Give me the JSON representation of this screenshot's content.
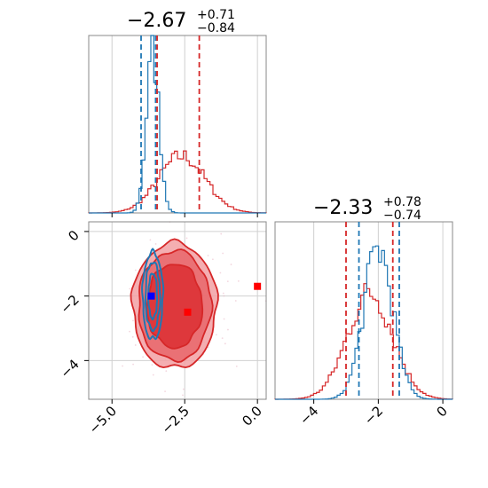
{
  "chart_data": {
    "type": "corner",
    "colors": {
      "series_a": "#1f77b4",
      "series_b": "#d62728",
      "marker_blue": "#0000ff",
      "marker_red": "#ff0000",
      "grid": "#d0d0d0"
    },
    "grid": true,
    "param1": {
      "range": [
        -5.8,
        0.3
      ],
      "ticks": [
        -5.0,
        -2.5,
        0.0
      ],
      "tick_labels": [
        "−5.0",
        "−2.5",
        "0.0"
      ],
      "title": {
        "median": "−2.67",
        "plus": "+0.71",
        "minus": "−0.84"
      },
      "lines_blue": [
        -4.0,
        -3.5
      ],
      "lines_red": [
        -3.45,
        -2.0
      ],
      "hist_blue": {
        "center": -3.6,
        "sigma": 0.22,
        "peak": 0.9
      },
      "hist_red": {
        "center": -2.6,
        "sigma": 0.8,
        "peak": 0.32
      }
    },
    "param2": {
      "range": [
        -5.2,
        0.3
      ],
      "ticks": [
        -4,
        -2,
        0
      ],
      "tick_labels": [
        "−4",
        "−2",
        "0"
      ],
      "title": {
        "median": "−2.33",
        "plus": "+0.78",
        "minus": "−0.74"
      },
      "lines_blue": [
        -2.6,
        -1.35
      ],
      "lines_red": [
        -3.0,
        -1.55
      ],
      "hist_blue": {
        "center": -2.0,
        "sigma": 0.45,
        "peak": 0.85
      },
      "hist_red": {
        "center": -2.25,
        "sigma": 0.7,
        "peak": 0.6
      }
    },
    "scatter": {
      "blue_contours": {
        "center": [
          -3.6,
          -2.0
        ],
        "radii": [
          [
            0.35,
            1.35
          ],
          [
            0.25,
            1.05
          ],
          [
            0.15,
            0.7
          ]
        ]
      },
      "red_contours": {
        "center": [
          -2.85,
          -2.3
        ],
        "radii": [
          [
            1.45,
            1.95
          ],
          [
            1.25,
            1.7
          ],
          [
            0.95,
            1.3
          ]
        ]
      },
      "markers": [
        {
          "x": -3.65,
          "y": -2.0,
          "color": "blue"
        },
        {
          "x": -2.4,
          "y": -2.5,
          "color": "red"
        },
        {
          "x": 0.0,
          "y": -1.7,
          "color": "red"
        }
      ]
    }
  }
}
